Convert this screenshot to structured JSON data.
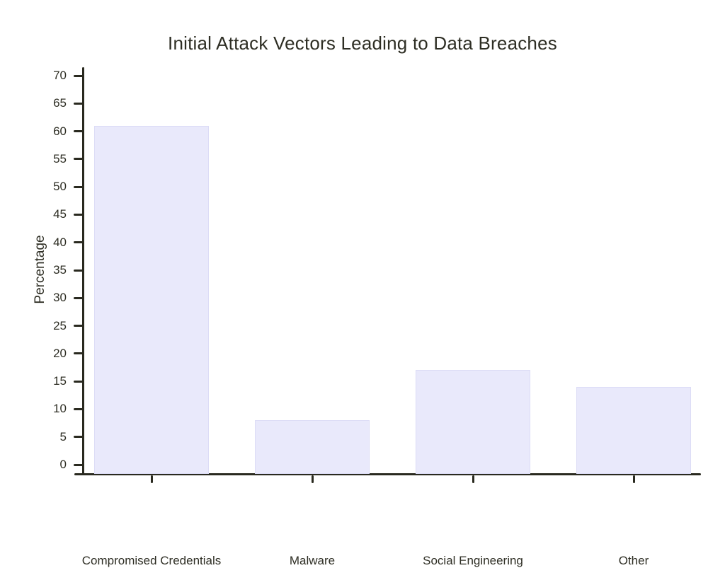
{
  "chart_data": {
    "type": "bar",
    "title": "Initial Attack Vectors Leading to Data Breaches",
    "categories": [
      "Compromised Credentials",
      "Malware",
      "Social Engineering",
      "Other"
    ],
    "values": [
      61,
      8,
      17,
      14
    ],
    "xlabel": "",
    "ylabel": "Percentage",
    "ylim": [
      0,
      70
    ],
    "ytick_step": 5,
    "grid": false,
    "legend_position": "none",
    "colors": {
      "bar_fill": "#e9e9fb",
      "bar_border": "#dcdcf6",
      "axis": "#29291f",
      "text": "#2e2e24",
      "background": "#ffffff"
    }
  }
}
